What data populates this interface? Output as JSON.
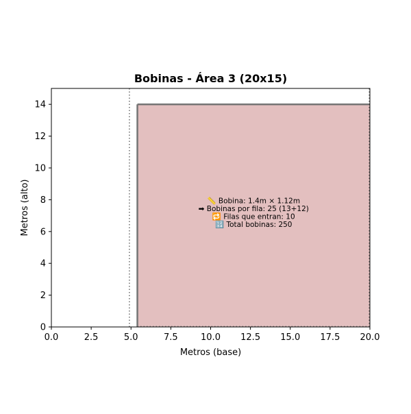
{
  "chart_data": {
    "type": "area",
    "title": "Bobinas - Área 3 (20x15)",
    "xlabel": "Metros (base)",
    "ylabel": "Metros (alto)",
    "xlim": [
      0,
      20
    ],
    "ylim": [
      0,
      15
    ],
    "xticks": [
      0,
      2.5,
      5,
      7.5,
      10,
      12.5,
      15,
      17.5,
      20
    ],
    "xtick_labels": [
      "0.0",
      "2.5",
      "5.0",
      "7.5",
      "10.0",
      "12.5",
      "15.0",
      "17.5",
      "20.0"
    ],
    "yticks": [
      0,
      2,
      4,
      6,
      8,
      10,
      12,
      14
    ],
    "ytick_labels": [
      "0",
      "2",
      "4",
      "6",
      "8",
      "10",
      "12",
      "14"
    ],
    "grid": false,
    "reference_line_x": 4.9,
    "boundary_line_x": 20,
    "filled_region": {
      "x0": 5.4,
      "x1": 20,
      "y0": 0,
      "y1": 14,
      "fill_color": "#e3bfbf",
      "edge_color": "#757575"
    },
    "annotation_lines": [
      "📏 Bobina: 1.4m × 1.12m",
      "➡ Bobinas por fila: 25 (13+12)",
      "🔁 Filas que entran: 10",
      "🔢 Total bobinas: 250"
    ],
    "annotation_anchor": {
      "x": 12.7,
      "y": 7.0
    }
  }
}
